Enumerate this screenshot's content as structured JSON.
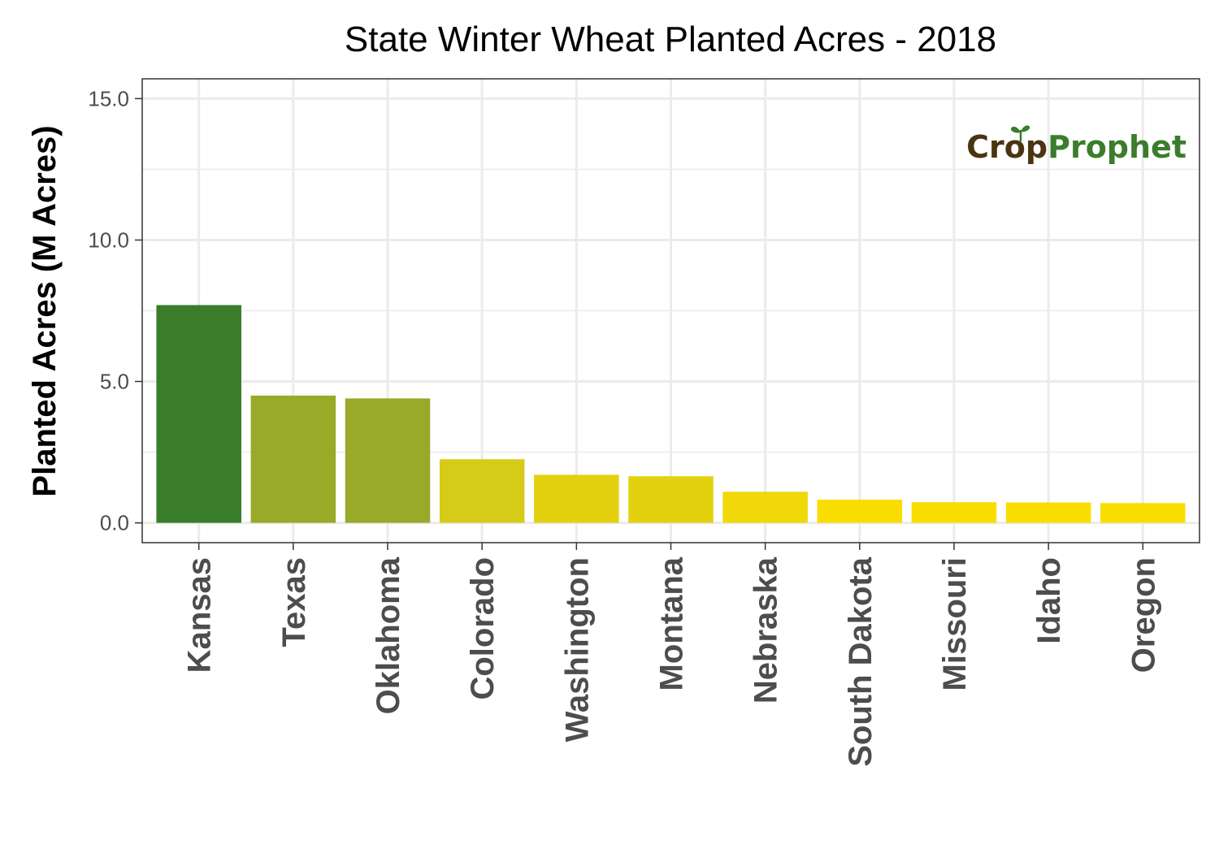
{
  "chart_data": {
    "type": "bar",
    "title": "State Winter Wheat Planted Acres - 2018",
    "xlabel": "",
    "ylabel": "Planted Acres (M Acres)",
    "ylim": [
      -0.7,
      15.7
    ],
    "yticks": [
      "0.0",
      "5.0",
      "10.0",
      "15.0"
    ],
    "ytick_values": [
      0,
      5,
      10,
      15
    ],
    "categories": [
      "Kansas",
      "Texas",
      "Oklahoma",
      "Colorado",
      "Washington",
      "Montana",
      "Nebraska",
      "South Dakota",
      "Missouri",
      "Idaho",
      "Oregon"
    ],
    "values": [
      7.7,
      4.5,
      4.4,
      2.25,
      1.7,
      1.65,
      1.1,
      0.82,
      0.73,
      0.72,
      0.7
    ],
    "colors": [
      "#397d2a",
      "#99a928",
      "#99a928",
      "#d6cb19",
      "#e3d110",
      "#e3d110",
      "#f0d80a",
      "#fadd00",
      "#fadd00",
      "#fadd00",
      "#fadd00"
    ],
    "grid": true,
    "legend": "none"
  },
  "logo": {
    "part1": "Crop",
    "part2": "Prophet",
    "color1": "#4a3411",
    "color2": "#3a7d2c"
  }
}
